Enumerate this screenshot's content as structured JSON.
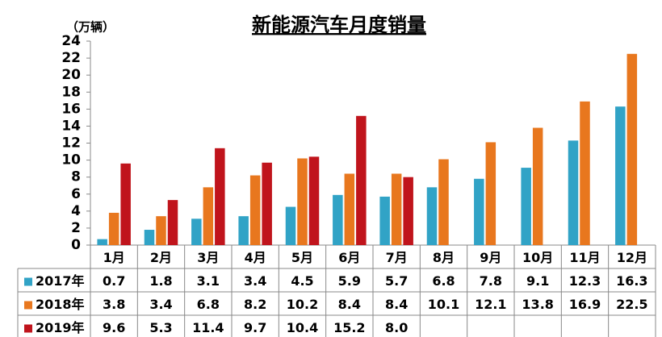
{
  "chart_data": {
    "type": "bar",
    "title": "新能源汽车月度销量",
    "y_label": "（万辆）",
    "categories": [
      "1月",
      "2月",
      "3月",
      "4月",
      "5月",
      "6月",
      "7月",
      "8月",
      "9月",
      "10月",
      "11月",
      "12月"
    ],
    "series": [
      {
        "name": "2017年",
        "color": "#31a3c6",
        "values": [
          0.7,
          1.8,
          3.1,
          3.4,
          4.5,
          5.9,
          5.7,
          6.8,
          7.8,
          9.1,
          12.3,
          16.3
        ]
      },
      {
        "name": "2018年",
        "color": "#e8771e",
        "values": [
          3.8,
          3.4,
          6.8,
          8.2,
          10.2,
          8.4,
          8.4,
          10.1,
          12.1,
          13.8,
          16.9,
          22.5
        ]
      },
      {
        "name": "2019年",
        "color": "#c0141c",
        "values": [
          9.6,
          5.3,
          11.4,
          9.7,
          10.4,
          15.2,
          8,
          null,
          null,
          null,
          null,
          null
        ],
        "value_labels": [
          "9.6",
          "5.3",
          "11.4",
          "9.7",
          "10.4",
          "15.2",
          "8.0",
          null,
          null,
          null,
          null,
          null
        ]
      }
    ],
    "ylim": [
      0,
      24
    ],
    "yticks": [
      0,
      2,
      4,
      6,
      8,
      10,
      12,
      14,
      16,
      18,
      20,
      22,
      24
    ]
  }
}
